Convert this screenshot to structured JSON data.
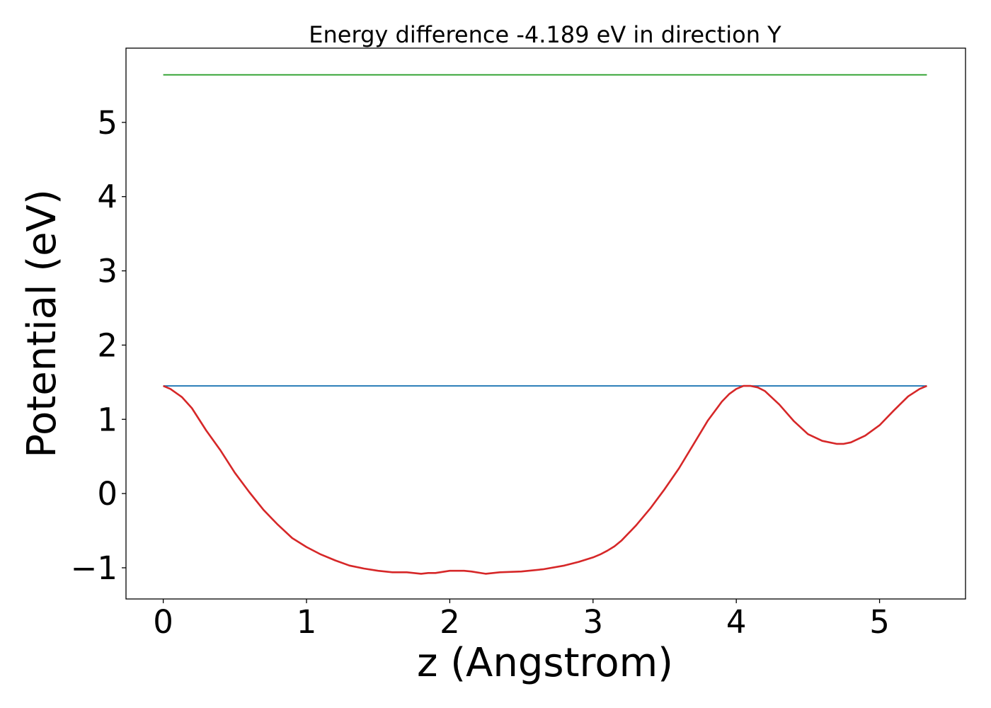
{
  "chart_data": {
    "type": "line",
    "title": "Energy difference -4.189 eV in direction Y",
    "xlabel": "z (Angstrom)",
    "ylabel": "Potential (eV)",
    "xlim": [
      -0.26,
      5.6
    ],
    "ylim": [
      -1.42,
      6.0
    ],
    "xticks": [
      0,
      1,
      2,
      3,
      4,
      5
    ],
    "yticks": [
      -1,
      0,
      1,
      2,
      3,
      4,
      5
    ],
    "xtick_labels": [
      "0",
      "1",
      "2",
      "3",
      "4",
      "5"
    ],
    "ytick_labels": [
      "−1",
      "0",
      "1",
      "2",
      "3",
      "4",
      "5"
    ],
    "grid": false,
    "series": [
      {
        "color": "#2ca02c",
        "x": [
          0.0,
          5.33
        ],
        "y": [
          5.64,
          5.64
        ]
      },
      {
        "color": "#1f77b4",
        "x": [
          0.0,
          5.33
        ],
        "y": [
          1.45,
          1.45
        ]
      },
      {
        "color": "#d62728",
        "x": [
          0.0,
          0.05,
          0.13,
          0.2,
          0.3,
          0.4,
          0.5,
          0.6,
          0.7,
          0.8,
          0.9,
          1.0,
          1.1,
          1.2,
          1.3,
          1.4,
          1.5,
          1.6,
          1.7,
          1.8,
          1.85,
          1.9,
          2.0,
          2.05,
          2.1,
          2.15,
          2.25,
          2.35,
          2.5,
          2.65,
          2.8,
          2.9,
          3.0,
          3.05,
          3.1,
          3.15,
          3.2,
          3.3,
          3.4,
          3.5,
          3.6,
          3.7,
          3.8,
          3.9,
          3.95,
          4.0,
          4.05,
          4.1,
          4.15,
          4.2,
          4.3,
          4.4,
          4.5,
          4.6,
          4.7,
          4.75,
          4.8,
          4.9,
          5.0,
          5.1,
          5.2,
          5.28,
          5.33
        ],
        "y": [
          1.45,
          1.41,
          1.3,
          1.15,
          0.85,
          0.58,
          0.28,
          0.02,
          -0.22,
          -0.42,
          -0.6,
          -0.72,
          -0.82,
          -0.9,
          -0.97,
          -1.01,
          -1.04,
          -1.06,
          -1.06,
          -1.08,
          -1.07,
          -1.07,
          -1.04,
          -1.04,
          -1.04,
          -1.05,
          -1.08,
          -1.06,
          -1.05,
          -1.02,
          -0.97,
          -0.92,
          -0.86,
          -0.82,
          -0.77,
          -0.71,
          -0.63,
          -0.43,
          -0.2,
          0.06,
          0.34,
          0.66,
          0.98,
          1.24,
          1.34,
          1.41,
          1.45,
          1.45,
          1.43,
          1.38,
          1.2,
          0.98,
          0.8,
          0.71,
          0.67,
          0.67,
          0.69,
          0.78,
          0.92,
          1.12,
          1.31,
          1.41,
          1.45
        ]
      }
    ]
  }
}
